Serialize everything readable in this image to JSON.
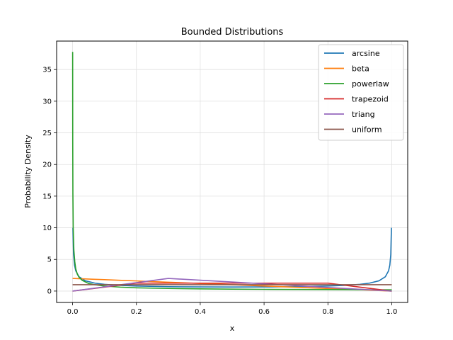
{
  "chart_data": {
    "type": "line",
    "title": "Bounded Distributions",
    "xlabel": "x",
    "ylabel": "Probability Density",
    "xlim": [
      -0.05,
      1.05
    ],
    "ylim": [
      -1.8,
      39.5
    ],
    "xticks": [
      0.0,
      0.2,
      0.4,
      0.6,
      0.8,
      1.0
    ],
    "xtick_labels": [
      "0.0",
      "0.2",
      "0.4",
      "0.6",
      "0.8",
      "1.0"
    ],
    "yticks": [
      0,
      5,
      10,
      15,
      20,
      25,
      30,
      35
    ],
    "ytick_labels": [
      "0",
      "5",
      "10",
      "15",
      "20",
      "25",
      "30",
      "35"
    ],
    "grid": true,
    "legend_position": "top-right",
    "series": [
      {
        "name": "arcsine",
        "color": "#1f77b4",
        "x": [
          0.001,
          0.003,
          0.006,
          0.01,
          0.02,
          0.04,
          0.07,
          0.1,
          0.15,
          0.2,
          0.3,
          0.4,
          0.5,
          0.6,
          0.7,
          0.8,
          0.85,
          0.9,
          0.93,
          0.96,
          0.98,
          0.99,
          0.994,
          0.997,
          0.999
        ],
        "y": [
          10.0,
          5.8,
          4.1,
          3.2,
          2.27,
          1.62,
          1.25,
          1.06,
          0.89,
          0.8,
          0.69,
          0.65,
          0.64,
          0.65,
          0.69,
          0.8,
          0.89,
          1.06,
          1.25,
          1.62,
          2.27,
          3.2,
          4.1,
          5.8,
          10.0
        ]
      },
      {
        "name": "beta",
        "color": "#ff7f0e",
        "x": [
          0.0,
          0.1,
          0.2,
          0.3,
          0.4,
          0.5,
          0.6,
          0.7,
          0.8,
          0.9,
          1.0
        ],
        "y": [
          2.0,
          1.8,
          1.6,
          1.4,
          1.2,
          1.0,
          0.8,
          0.6,
          0.4,
          0.2,
          0.0
        ]
      },
      {
        "name": "powerlaw",
        "color": "#2ca02c",
        "x": [
          0.0002,
          0.0005,
          0.001,
          0.002,
          0.004,
          0.007,
          0.01,
          0.015,
          0.02,
          0.03,
          0.05,
          0.07,
          0.1,
          0.15,
          0.2,
          0.3,
          0.4,
          0.5,
          0.6,
          0.7,
          0.8,
          0.9,
          1.0
        ],
        "y": [
          37.8,
          23.5,
          15.4,
          10.0,
          6.5,
          4.6,
          3.5,
          2.65,
          2.2,
          1.7,
          1.2,
          1.0,
          0.8,
          0.62,
          0.52,
          0.41,
          0.35,
          0.31,
          0.27,
          0.25,
          0.23,
          0.21,
          0.2
        ]
      },
      {
        "name": "trapezoid",
        "color": "#d62728",
        "x": [
          0.0,
          0.2,
          0.8,
          1.0
        ],
        "y": [
          0.0,
          1.25,
          1.25,
          0.0
        ]
      },
      {
        "name": "triang",
        "color": "#9467bd",
        "x": [
          0.0,
          0.3,
          1.0
        ],
        "y": [
          0.0,
          2.0,
          0.0
        ]
      },
      {
        "name": "uniform",
        "color": "#8c564b",
        "x": [
          0.0,
          1.0
        ],
        "y": [
          1.0,
          1.0
        ]
      }
    ]
  }
}
